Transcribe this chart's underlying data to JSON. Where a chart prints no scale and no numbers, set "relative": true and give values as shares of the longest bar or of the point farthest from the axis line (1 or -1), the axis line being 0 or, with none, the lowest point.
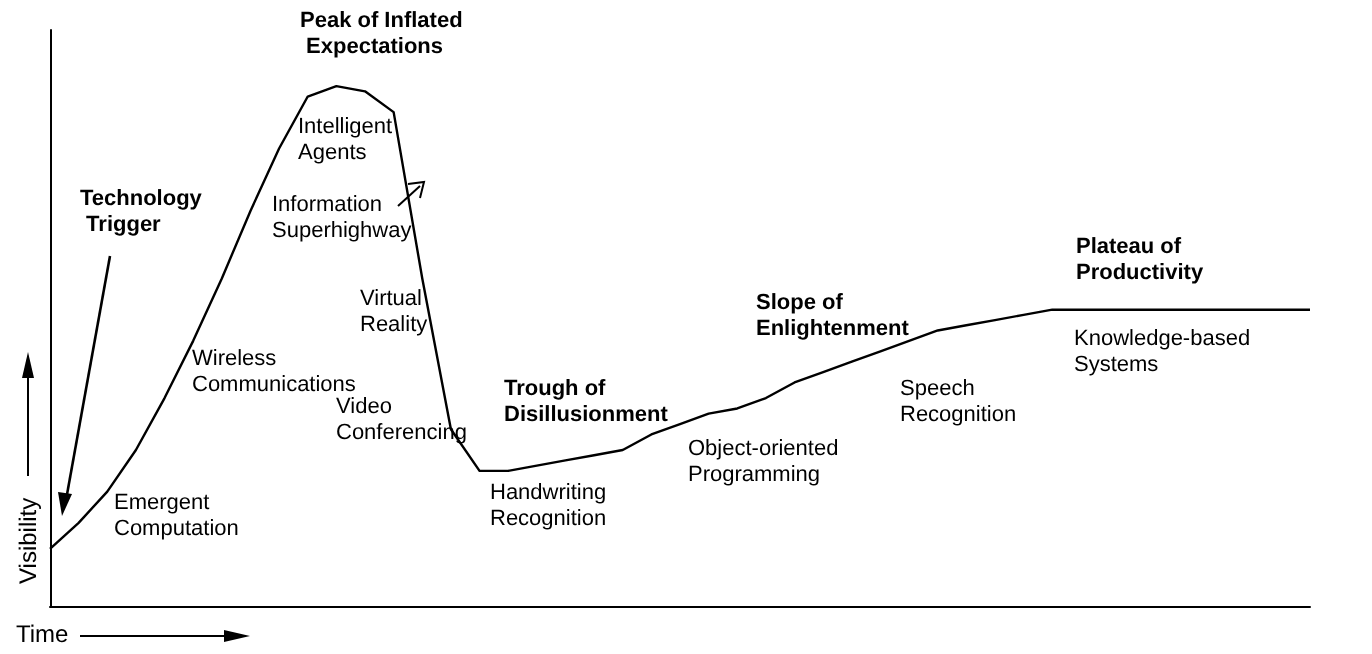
{
  "chart_data": {
    "type": "line",
    "relative": true,
    "xlabel": "Time",
    "ylabel": "Visibility",
    "categories": [
      null,
      null,
      null,
      null,
      null,
      null,
      null,
      null,
      null,
      null,
      null,
      null,
      null,
      null,
      null,
      null,
      null,
      null,
      null,
      null,
      null,
      null,
      null,
      null,
      null,
      null,
      null,
      null,
      null,
      null,
      null,
      null,
      null,
      null,
      null,
      null,
      null,
      null,
      null,
      null,
      null,
      null,
      null,
      null,
      null
    ],
    "series": [
      {
        "color": "#000000",
        "values": [
          0.11,
          0.16,
          0.22,
          0.3,
          0.4,
          0.51,
          0.63,
          0.76,
          0.88,
          0.98,
          1,
          0.99,
          0.95,
          0.63,
          0.34,
          0.26,
          0.26,
          0.27,
          0.28,
          0.29,
          0.3,
          0.33,
          0.35,
          0.37,
          0.38,
          0.4,
          0.43,
          0.45,
          0.47,
          0.49,
          0.51,
          0.53,
          0.54,
          0.55,
          0.56,
          0.57,
          0.57,
          0.57,
          0.57,
          0.57,
          0.57,
          0.57,
          0.57,
          0.57,
          0.57
        ]
      }
    ],
    "annotations": [
      "Peak of Inflated Expectations",
      "Technology Trigger",
      "Trough of Disillusionment",
      "Slope of Enlightenment",
      "Plateau of Productivity",
      "Emergent Computation",
      "Wireless Communications",
      "Intelligent Agents",
      "Information Superhighway",
      "Virtual Reality",
      "Video Conferencing",
      "Handwriting Recognition",
      "Object-oriented Programming",
      "Speech Recognition",
      "Knowledge-based Systems"
    ]
  }
}
